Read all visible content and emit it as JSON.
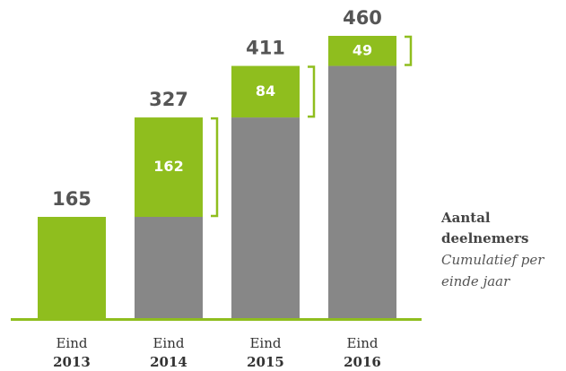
{
  "chart_data": {
    "type": "stacked_bar",
    "categories": [
      [
        "Eind",
        "2013"
      ],
      [
        "Eind",
        "2014"
      ],
      [
        "Eind",
        "2015"
      ],
      [
        "Eind",
        "2016"
      ]
    ],
    "series": [
      {
        "color": "#878787",
        "values": [
          null,
          165,
          327,
          411
        ]
      },
      {
        "color": "#8fbe1e",
        "values": [
          165,
          162,
          84,
          49
        ]
      }
    ],
    "totals": [
      165,
      327,
      411,
      460
    ],
    "ylim": [
      0,
      460
    ],
    "annotation": {
      "title": [
        "Aantal",
        "deelnemers"
      ],
      "subtitle": [
        "Cumulatief per",
        "einde jaar"
      ]
    }
  }
}
